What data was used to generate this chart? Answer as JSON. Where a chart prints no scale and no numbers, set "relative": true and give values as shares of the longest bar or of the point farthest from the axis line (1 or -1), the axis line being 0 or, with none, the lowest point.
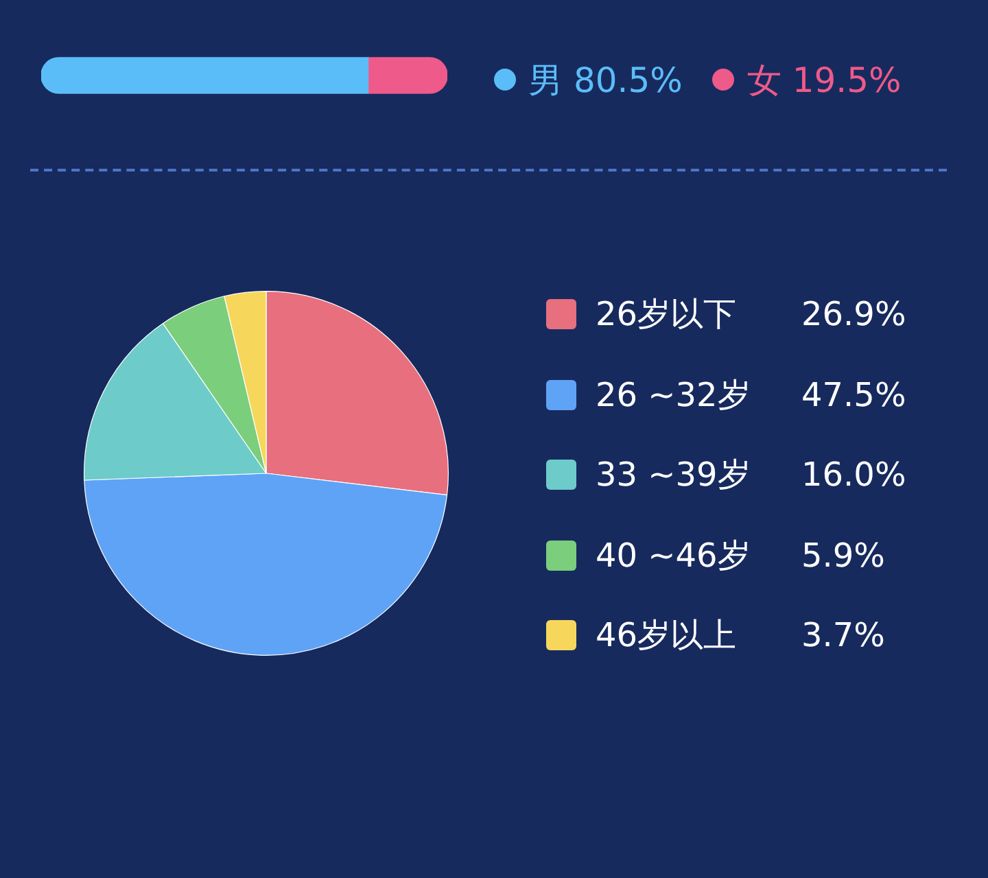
{
  "chart_data": [
    {
      "type": "bar",
      "orientation": "horizontal",
      "stacked": true,
      "relative": true,
      "categories": [
        null
      ],
      "legend": "right",
      "series": [
        {
          "name": "男 80.5%",
          "color": "#5bbdf8",
          "values": [
            0.805
          ]
        },
        {
          "name": "女 19.5%",
          "color": "#ee5a8a",
          "values": [
            0.195
          ]
        }
      ]
    },
    {
      "type": "pie",
      "legend": "right",
      "categories": [
        "26岁以下",
        "26 ~32岁",
        "33 ~39岁",
        "40 ~46岁",
        "46岁以上"
      ],
      "values": [
        26.9,
        47.5,
        16.0,
        5.9,
        3.7
      ],
      "value_labels": [
        "26.9%",
        "47.5%",
        "16.0%",
        "5.9%",
        "3.7%"
      ],
      "colors": [
        "#e76f7e",
        "#5fa3f6",
        "#6dcbc9",
        "#7bce7c",
        "#f6d75b"
      ]
    }
  ]
}
